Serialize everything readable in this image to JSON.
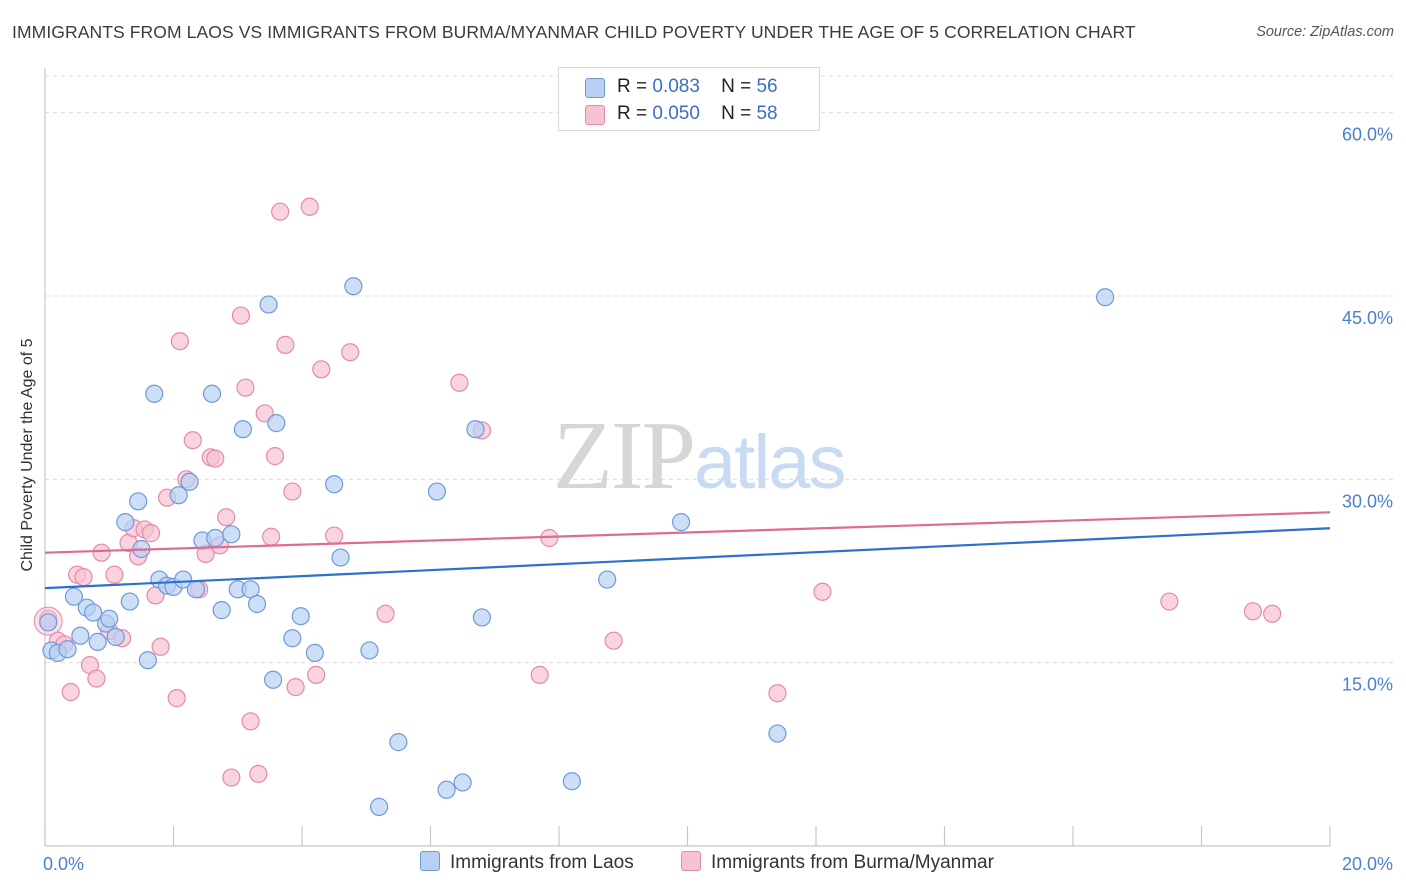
{
  "title": "IMMIGRANTS FROM LAOS VS IMMIGRANTS FROM BURMA/MYANMAR CHILD POVERTY UNDER THE AGE OF 5 CORRELATION CHART",
  "source": "Source: ZipAtlas.com",
  "watermark": {
    "zip": "ZIP",
    "atlas": "atlas"
  },
  "legend": {
    "r_label": "R =",
    "n_label": "N =",
    "laos": {
      "r": "0.083",
      "n": "56"
    },
    "burma": {
      "r": "0.050",
      "n": "58"
    }
  },
  "bottom_legend": {
    "laos": "Immigrants from Laos",
    "burma": "Immigrants from Burma/Myanmar"
  },
  "colors": {
    "laos_fill": "#b8d0f4",
    "laos_stroke": "#6f9ad6",
    "laos_line": "#2f6fcf",
    "burma_fill": "#f7c2d2",
    "burma_stroke": "#e48aa9",
    "burma_line": "#e06a96",
    "tick": "#4a7fd1"
  },
  "chart_data": {
    "type": "scatter",
    "title": "IMMIGRANTS FROM LAOS VS IMMIGRANTS FROM BURMA/MYANMAR CHILD POVERTY UNDER THE AGE OF 5 CORRELATION CHART",
    "xlabel": "",
    "ylabel": "Child Poverty Under the Age of 5",
    "xlim": [
      0,
      20
    ],
    "ylim": [
      0,
      63
    ],
    "x_tick_labels": [
      "0.0%",
      "20.0%"
    ],
    "y_ticks": [
      15,
      30,
      45,
      60
    ],
    "y_tick_labels": [
      "15.0%",
      "30.0%",
      "45.0%",
      "60.0%"
    ],
    "grid": true,
    "legend_position": "top-center",
    "series": [
      {
        "name": "Immigrants from Laos",
        "r": 0.083,
        "n": 56,
        "trend": [
          [
            0,
            21.1
          ],
          [
            20,
            26.0
          ]
        ],
        "points": [
          [
            0.05,
            18.3
          ],
          [
            0.1,
            16.0
          ],
          [
            0.2,
            15.8
          ],
          [
            0.35,
            16.1
          ],
          [
            0.45,
            20.4
          ],
          [
            0.55,
            17.2
          ],
          [
            0.65,
            19.5
          ],
          [
            0.75,
            19.1
          ],
          [
            0.82,
            16.7
          ],
          [
            0.95,
            18.2
          ],
          [
            1.0,
            18.6
          ],
          [
            1.1,
            17.1
          ],
          [
            1.25,
            26.5
          ],
          [
            1.32,
            20.0
          ],
          [
            1.45,
            28.2
          ],
          [
            1.5,
            24.3
          ],
          [
            1.6,
            15.2
          ],
          [
            1.7,
            37.0
          ],
          [
            1.78,
            21.8
          ],
          [
            1.9,
            21.3
          ],
          [
            2.0,
            21.2
          ],
          [
            2.08,
            28.7
          ],
          [
            2.15,
            21.8
          ],
          [
            2.25,
            29.8
          ],
          [
            2.35,
            21.0
          ],
          [
            2.45,
            25.0
          ],
          [
            2.6,
            37.0
          ],
          [
            2.65,
            25.2
          ],
          [
            2.75,
            19.3
          ],
          [
            2.9,
            25.5
          ],
          [
            3.0,
            21.0
          ],
          [
            3.08,
            34.1
          ],
          [
            3.2,
            21.0
          ],
          [
            3.3,
            19.8
          ],
          [
            3.48,
            44.3
          ],
          [
            3.55,
            13.6
          ],
          [
            3.6,
            34.6
          ],
          [
            3.85,
            17.0
          ],
          [
            3.98,
            18.8
          ],
          [
            4.2,
            15.8
          ],
          [
            4.5,
            29.6
          ],
          [
            4.6,
            23.6
          ],
          [
            4.8,
            45.8
          ],
          [
            5.05,
            16.0
          ],
          [
            5.2,
            3.2
          ],
          [
            5.5,
            8.5
          ],
          [
            6.1,
            29.0
          ],
          [
            6.25,
            4.6
          ],
          [
            6.5,
            5.2
          ],
          [
            6.7,
            34.1
          ],
          [
            6.8,
            18.7
          ],
          [
            8.2,
            5.3
          ],
          [
            8.75,
            21.8
          ],
          [
            9.9,
            26.5
          ],
          [
            11.4,
            9.2
          ],
          [
            16.5,
            44.9
          ]
        ]
      },
      {
        "name": "Immigrants from Burma/Myanmar",
        "r": 0.05,
        "n": 58,
        "trend": [
          [
            0,
            24.0
          ],
          [
            20,
            27.3
          ]
        ],
        "points": [
          [
            0.05,
            18.6
          ],
          [
            0.2,
            16.8
          ],
          [
            0.3,
            16.5
          ],
          [
            0.4,
            12.6
          ],
          [
            0.5,
            22.2
          ],
          [
            0.6,
            22.0
          ],
          [
            0.7,
            14.8
          ],
          [
            0.8,
            13.7
          ],
          [
            0.88,
            24.0
          ],
          [
            1.0,
            17.6
          ],
          [
            1.08,
            22.2
          ],
          [
            1.2,
            17.0
          ],
          [
            1.3,
            24.8
          ],
          [
            1.38,
            26.0
          ],
          [
            1.45,
            23.7
          ],
          [
            1.55,
            25.9
          ],
          [
            1.65,
            25.6
          ],
          [
            1.72,
            20.5
          ],
          [
            1.8,
            16.3
          ],
          [
            1.9,
            28.5
          ],
          [
            2.05,
            12.1
          ],
          [
            2.1,
            41.3
          ],
          [
            2.2,
            30.0
          ],
          [
            2.3,
            33.2
          ],
          [
            2.4,
            21.0
          ],
          [
            2.5,
            23.9
          ],
          [
            2.58,
            31.8
          ],
          [
            2.65,
            31.7
          ],
          [
            2.72,
            24.6
          ],
          [
            2.82,
            26.9
          ],
          [
            2.9,
            5.6
          ],
          [
            3.05,
            43.4
          ],
          [
            3.12,
            37.5
          ],
          [
            3.2,
            10.2
          ],
          [
            3.32,
            5.9
          ],
          [
            3.42,
            35.4
          ],
          [
            3.52,
            25.3
          ],
          [
            3.58,
            31.9
          ],
          [
            3.66,
            51.9
          ],
          [
            3.74,
            41.0
          ],
          [
            3.85,
            29.0
          ],
          [
            3.9,
            13.0
          ],
          [
            4.12,
            52.3
          ],
          [
            4.22,
            14.0
          ],
          [
            4.3,
            39.0
          ],
          [
            4.5,
            25.4
          ],
          [
            4.75,
            40.4
          ],
          [
            5.3,
            19.0
          ],
          [
            6.45,
            37.9
          ],
          [
            6.8,
            34.0
          ],
          [
            7.7,
            14.0
          ],
          [
            7.85,
            25.2
          ],
          [
            8.85,
            16.8
          ],
          [
            11.4,
            12.5
          ],
          [
            12.1,
            20.8
          ],
          [
            17.5,
            20.0
          ],
          [
            18.8,
            19.2
          ],
          [
            19.1,
            19.0
          ]
        ]
      }
    ]
  }
}
